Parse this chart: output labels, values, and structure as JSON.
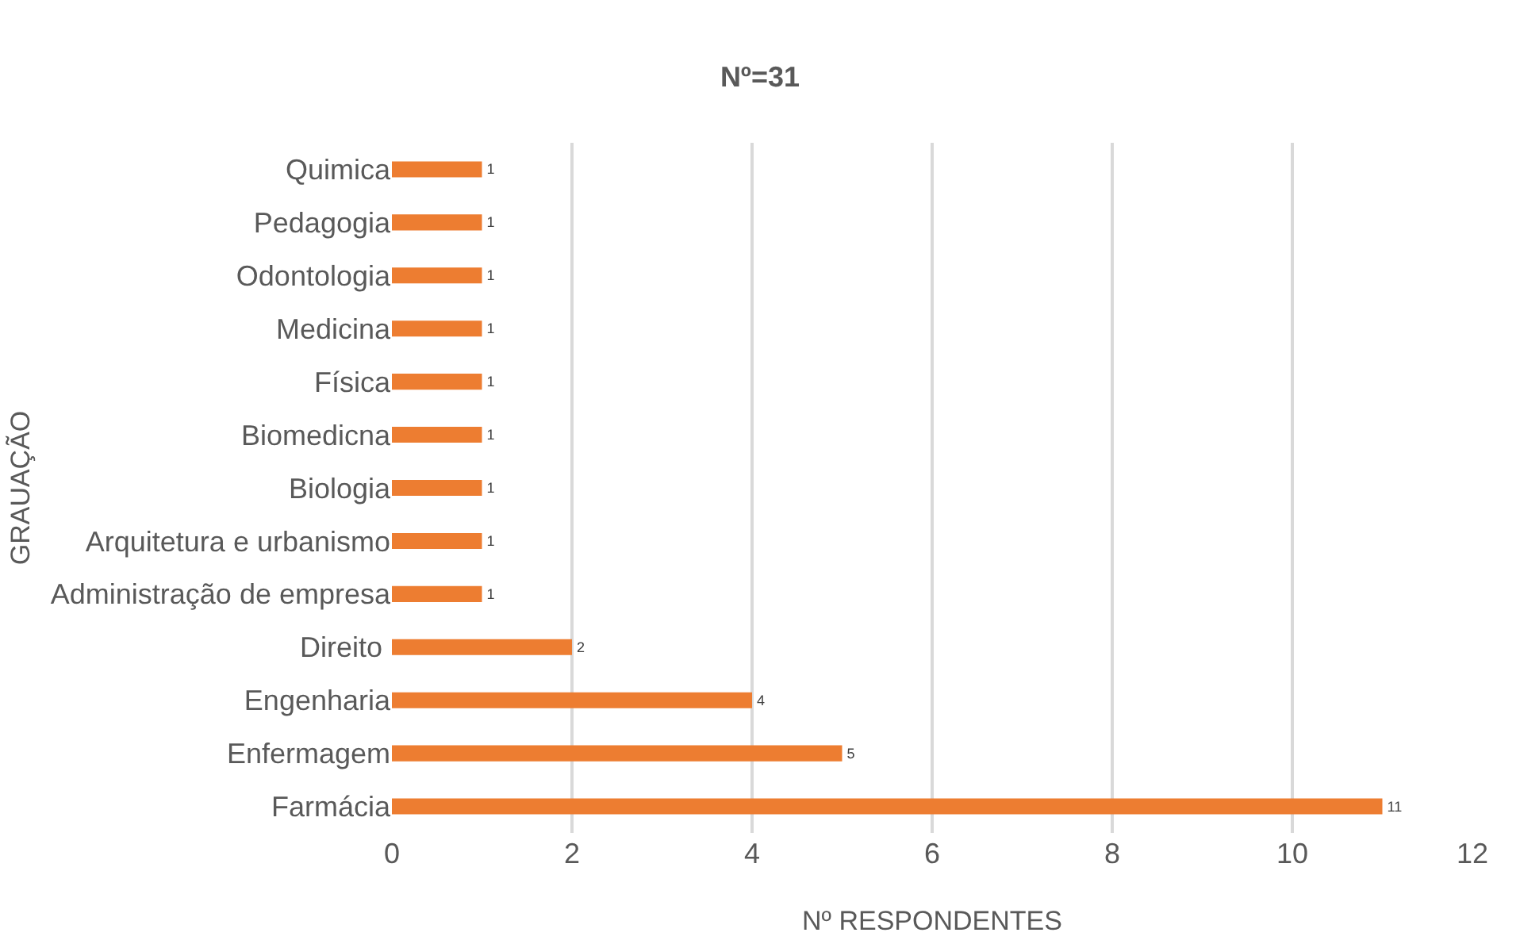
{
  "chart_data": {
    "type": "bar",
    "orientation": "horizontal",
    "title": "Nº=31",
    "xlabel": "Nº RESPONDENTES",
    "ylabel": "GRAUAÇÃO",
    "categories": [
      "Quimica",
      "Pedagogia",
      "Odontologia",
      "Medicina",
      "Física",
      "Biomedicna",
      "Biologia",
      "Arquitetura e urbanismo",
      "Administração de empresa",
      "Direito ",
      "Engenharia",
      "Enfermagem",
      "Farmácia"
    ],
    "values": [
      1,
      1,
      1,
      1,
      1,
      1,
      1,
      1,
      1,
      2,
      4,
      5,
      11
    ],
    "color": "#ed7d31",
    "xlim": [
      0,
      12
    ],
    "xticks": [
      0,
      2,
      4,
      6,
      8,
      10,
      12
    ],
    "grid": "x",
    "data_labels": true
  }
}
